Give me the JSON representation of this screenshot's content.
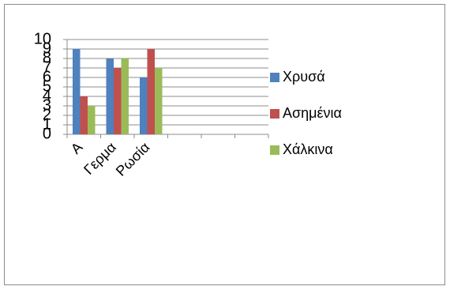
{
  "chart_data": {
    "type": "bar",
    "categories": [
      "Α",
      "Γερμα",
      "Ρωσία",
      null,
      null,
      null
    ],
    "series": [
      {
        "name": "Χρυσά",
        "color": "#4f81bd",
        "values": [
          9,
          8,
          6,
          null,
          null,
          null
        ]
      },
      {
        "name": "Ασημένια",
        "color": "#c0504d",
        "values": [
          4,
          7,
          9,
          null,
          null,
          null
        ]
      },
      {
        "name": "Χάλκινα",
        "color": "#9bbb59",
        "values": [
          3,
          8,
          7,
          null,
          null,
          null
        ]
      }
    ],
    "ylim": [
      0,
      10
    ],
    "yticks": [
      0,
      1,
      2,
      3,
      4,
      5,
      6,
      7,
      8,
      9,
      10
    ],
    "grid": true,
    "legend": "right"
  }
}
